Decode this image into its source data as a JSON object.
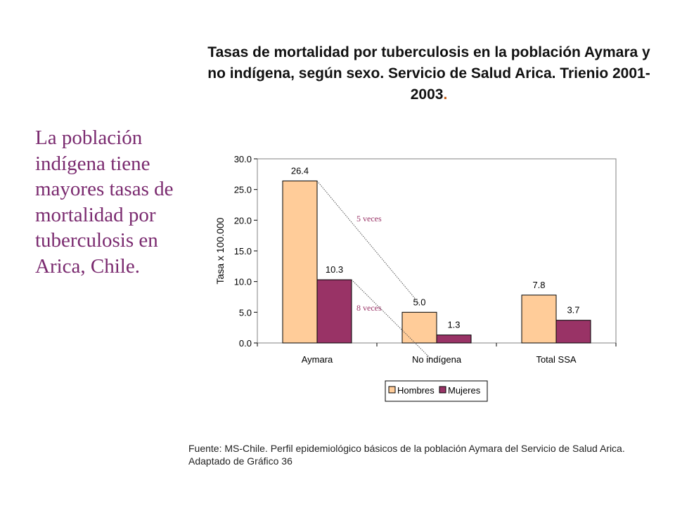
{
  "title": {
    "text": "Tasas de mortalidad por tuberculosis en la población Aymara y no indígena, según sexo. Servicio de Salud Arica. Trienio 2001-2003",
    "end": "."
  },
  "side_text": "La población indígena tiene mayores tasas de mortalidad por tuberculosis en Arica, Chile.",
  "source": "Fuente: MS-Chile. Perfil epidemiológico básicos de la población Aymara del Servicio de Salud Arica. Adaptado de Gráfico 36",
  "colors": {
    "hombres": "#ffcc99",
    "mujeres": "#993366",
    "annotation": "#993366"
  },
  "chart_data": {
    "type": "bar",
    "ylabel": "Tasa x 100.000",
    "ylim": [
      0,
      30
    ],
    "yticks": [
      "0.0",
      "5.0",
      "10.0",
      "15.0",
      "20.0",
      "25.0",
      "30.0"
    ],
    "categories": [
      "Aymara",
      "No indígena",
      "Total SSA"
    ],
    "series": [
      {
        "name": "Hombres",
        "values": [
          26.4,
          5.0,
          7.8
        ],
        "labels": [
          "26.4",
          "5.0",
          "7.8"
        ]
      },
      {
        "name": "Mujeres",
        "values": [
          10.3,
          1.3,
          3.7
        ],
        "labels": [
          "10.3",
          "1.3",
          "3.7"
        ]
      }
    ],
    "legend_position": "bottom",
    "annotations": [
      {
        "text": "5 veces",
        "series": "Hombres"
      },
      {
        "text": "8 veces",
        "series": "Mujeres"
      }
    ]
  }
}
